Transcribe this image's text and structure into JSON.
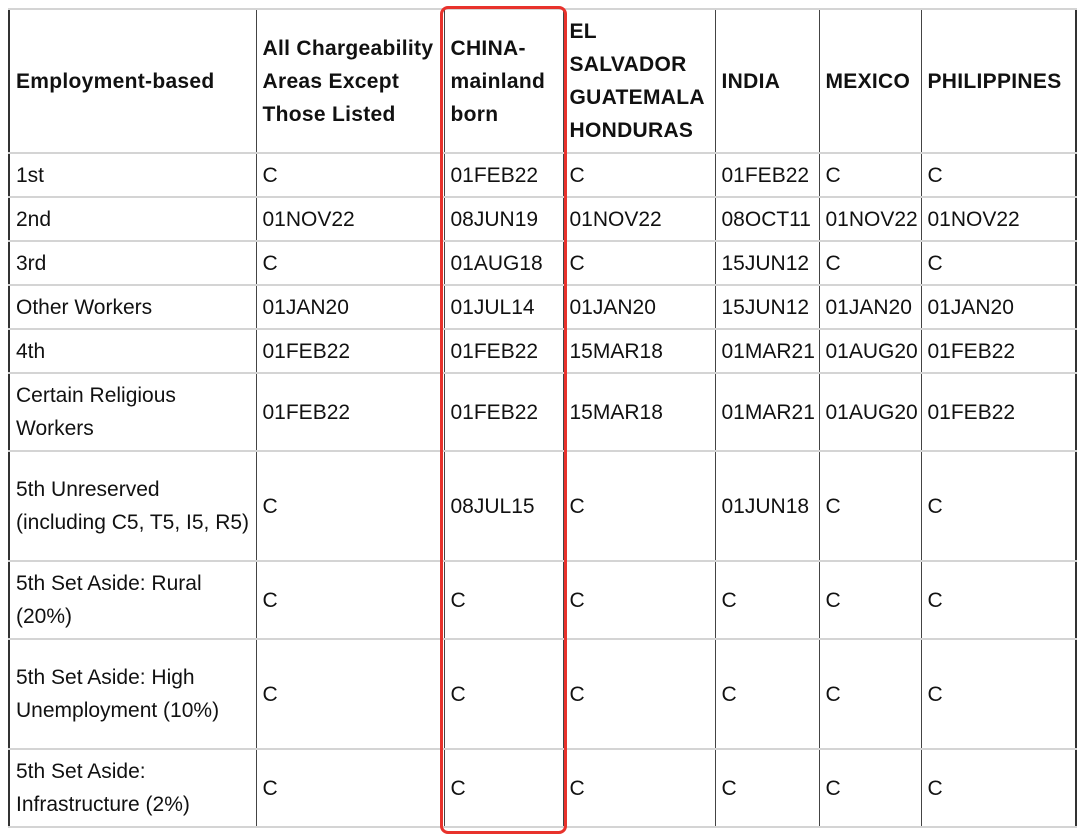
{
  "accent_color": "#e8322c",
  "headers": [
    "Employment-based",
    "All Chargeability Areas Except Those Listed",
    "CHINA-mainland born",
    "EL SALVADOR GUATEMALA HONDURAS",
    "INDIA",
    "MEXICO",
    "PHILIPPINES"
  ],
  "rows": [
    [
      "1st",
      "C",
      "01FEB22",
      "C",
      "01FEB22",
      "C",
      "C"
    ],
    [
      "2nd",
      "01NOV22",
      "08JUN19",
      "01NOV22",
      "08OCT11",
      "01NOV22",
      "01NOV22"
    ],
    [
      "3rd",
      "C",
      "01AUG18",
      "C",
      "15JUN12",
      "C",
      "C"
    ],
    [
      "Other Workers",
      "01JAN20",
      "01JUL14",
      "01JAN20",
      "15JUN12",
      "01JAN20",
      "01JAN20"
    ],
    [
      "4th",
      "01FEB22",
      "01FEB22",
      "15MAR18",
      "01MAR21",
      "01AUG20",
      "01FEB22"
    ],
    [
      "Certain Religious Workers",
      "01FEB22",
      "01FEB22",
      "15MAR18",
      "01MAR21",
      "01AUG20",
      "01FEB22"
    ],
    [
      "5th Unreserved (including C5, T5, I5, R5)",
      "C",
      "08JUL15",
      "C",
      "01JUN18",
      "C",
      "C"
    ],
    [
      "5th Set Aside: Rural (20%)",
      "C",
      "C",
      "C",
      "C",
      "C",
      "C"
    ],
    [
      "5th Set Aside: High Unemployment (10%)",
      "C",
      "C",
      "C",
      "C",
      "C",
      "C"
    ],
    [
      "5th Set Aside: Infrastructure (2%)",
      "C",
      "C",
      "C",
      "C",
      "C",
      "C"
    ]
  ],
  "highlighted_column": "CHINA-mainland born"
}
